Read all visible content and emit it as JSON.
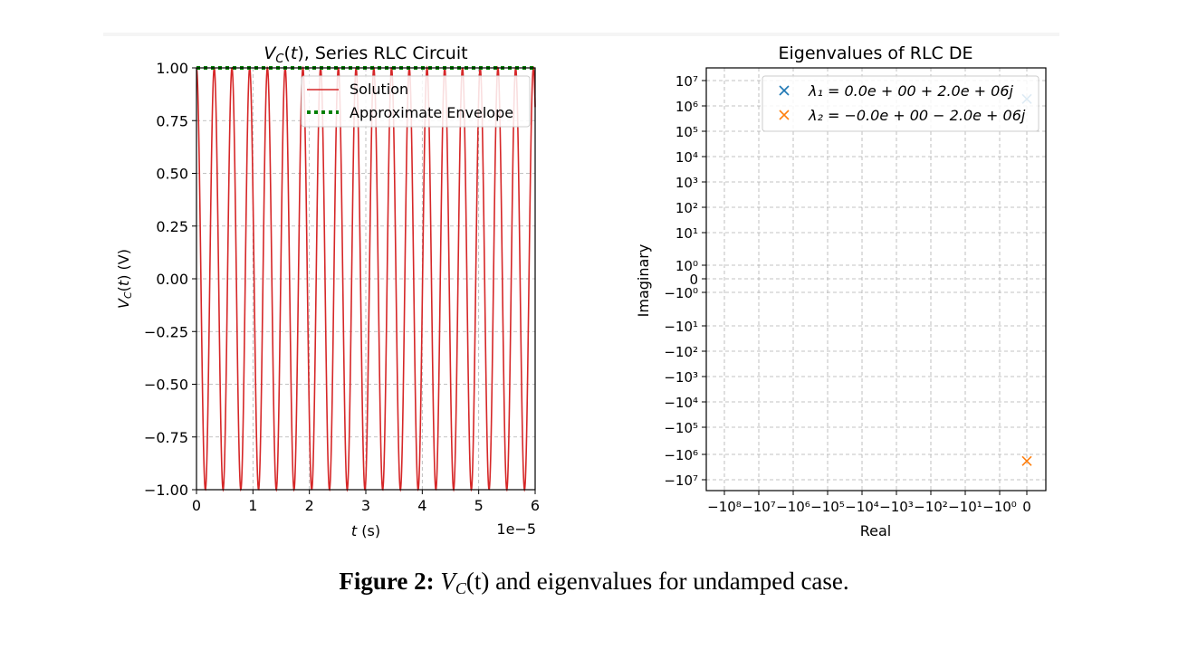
{
  "chart_data": [
    {
      "type": "line",
      "title": "V_C(t), Series RLC Circuit",
      "xlabel": "t (s)",
      "ylabel": "V_C(t) (V)",
      "x_offset_label": "1e−5",
      "xlim": [
        0,
        6e-05
      ],
      "ylim": [
        -1.0,
        1.0
      ],
      "x_ticks": [
        0,
        1,
        2,
        3,
        4,
        5,
        6
      ],
      "y_ticks": [
        "1.00",
        "0.75",
        "0.50",
        "0.25",
        "0.00",
        "−0.25",
        "−0.50",
        "−0.75",
        "−1.00"
      ],
      "grid": true,
      "legend_position": "upper right",
      "series": [
        {
          "name": "Solution",
          "color": "#d62728",
          "style": "solid",
          "function": "cos(2*pi*f*t)",
          "frequency_hz": 318310,
          "t_range": [
            0,
            6e-05
          ],
          "points": 1400
        },
        {
          "name": "Approximate Envelope",
          "color": "#008000",
          "style": "dotted",
          "x": [
            0,
            6e-05
          ],
          "y": [
            1.0,
            1.0
          ]
        }
      ]
    },
    {
      "type": "scatter",
      "title": "Eigenvalues of RLC DE",
      "xlabel": "Real",
      "ylabel": "Imaginary",
      "x_scale": "symlog",
      "y_scale": "symlog",
      "x_tick_labels": [
        "−10⁸",
        "−10⁷",
        "−10⁶",
        "−10⁵",
        "−10⁴",
        "−10³",
        "−10²",
        "−10¹",
        "−10⁰",
        "0"
      ],
      "y_tick_labels": [
        "10⁷",
        "10⁶",
        "10⁵",
        "10⁴",
        "10³",
        "10²",
        "10¹",
        "10⁰",
        "0",
        "−10⁰",
        "−10¹",
        "−10²",
        "−10³",
        "−10⁴",
        "−10⁵",
        "−10⁶",
        "−10⁷"
      ],
      "grid": true,
      "legend_position": "upper right",
      "series": [
        {
          "name": "λ₁ = 0.0e + 00 + 2.0e + 06j",
          "color": "#1f77b4",
          "marker": "x",
          "x": [
            0.0
          ],
          "y": [
            2000000.0
          ]
        },
        {
          "name": "λ₂ = −0.0e + 00 − 2.0e + 06j",
          "color": "#ff7f0e",
          "marker": "x",
          "x": [
            -0.0
          ],
          "y": [
            -2000000.0
          ]
        }
      ]
    }
  ],
  "caption": {
    "label": "Figure 2:",
    "math": "V",
    "math_sub": "C",
    "math_arg": "(t)",
    "text": " and eigenvalues for undamped case."
  }
}
